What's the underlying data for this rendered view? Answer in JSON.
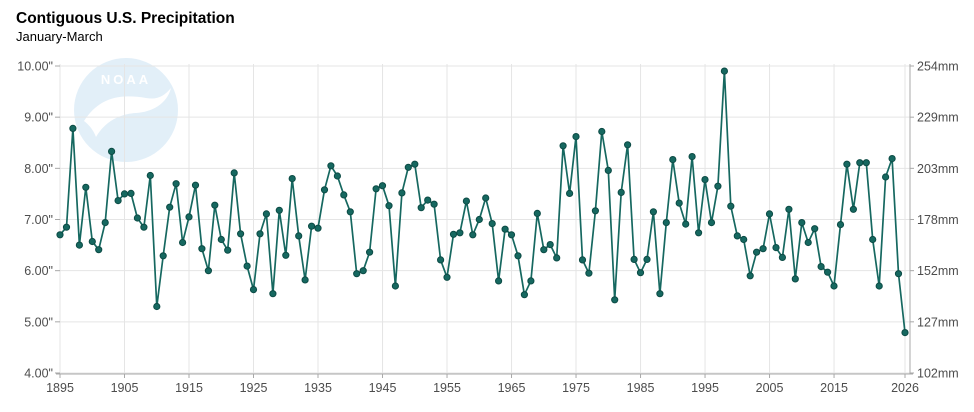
{
  "header": {
    "title": "Contiguous U.S. Precipitation",
    "subtitle": "January-March"
  },
  "watermark": {
    "label": "NOAA"
  },
  "chart_data": {
    "type": "line",
    "title": "Contiguous U.S. Precipitation",
    "subtitle": "January-March",
    "series_name": "January-March precipitation (inches)",
    "x_start": 1895,
    "x_end": 2026,
    "ylim": [
      4,
      10
    ],
    "grid": true,
    "values": [
      6.7,
      6.85,
      8.78,
      6.5,
      7.63,
      6.57,
      6.41,
      6.94,
      8.33,
      7.37,
      7.5,
      7.51,
      7.03,
      6.85,
      7.86,
      5.3,
      6.29,
      7.24,
      7.7,
      6.55,
      7.05,
      7.67,
      6.43,
      6.0,
      7.28,
      6.61,
      6.4,
      7.91,
      6.72,
      6.09,
      5.63,
      6.72,
      7.11,
      5.55,
      7.18,
      6.3,
      7.8,
      6.68,
      5.82,
      6.87,
      6.83,
      7.58,
      8.05,
      7.85,
      7.48,
      7.15,
      5.94,
      6.0,
      6.36,
      7.6,
      7.66,
      7.27,
      5.7,
      7.52,
      8.02,
      8.08,
      7.23,
      7.38,
      7.3,
      6.21,
      5.87,
      6.71,
      6.74,
      7.36,
      6.7,
      7.0,
      7.42,
      6.92,
      5.8,
      6.81,
      6.7,
      6.29,
      5.53,
      5.8,
      7.12,
      6.41,
      6.51,
      6.25,
      8.44,
      7.51,
      8.62,
      6.21,
      5.95,
      7.17,
      8.72,
      7.96,
      5.43,
      7.53,
      8.46,
      6.22,
      5.96,
      6.22,
      7.15,
      5.55,
      6.94,
      8.17,
      7.32,
      6.91,
      8.23,
      6.74,
      7.78,
      6.94,
      7.65,
      9.9,
      7.26,
      6.68,
      6.61,
      5.9,
      6.36,
      6.43,
      7.11,
      6.45,
      6.26,
      7.2,
      5.84,
      6.94,
      6.55,
      6.82,
      6.08,
      5.97,
      5.7,
      6.9,
      8.08,
      7.2,
      8.11,
      8.11,
      6.61,
      5.7,
      7.83,
      8.19,
      5.94,
      4.79
    ],
    "y_ticks": [
      {
        "value": 10,
        "label_in": "10.00\"",
        "label_mm": "254mm"
      },
      {
        "value": 9,
        "label_in": "9.00\"",
        "label_mm": "229mm"
      },
      {
        "value": 8,
        "label_in": "8.00\"",
        "label_mm": "203mm"
      },
      {
        "value": 7,
        "label_in": "7.00\"",
        "label_mm": "178mm"
      },
      {
        "value": 6,
        "label_in": "6.00\"",
        "label_mm": "152mm"
      },
      {
        "value": 5,
        "label_in": "5.00\"",
        "label_mm": "127mm"
      },
      {
        "value": 4,
        "label_in": "4.00\"",
        "label_mm": "102mm"
      }
    ],
    "x_ticks": [
      {
        "year": 1895,
        "label": "1895"
      },
      {
        "year": 1905,
        "label": "1905"
      },
      {
        "year": 1915,
        "label": "1915"
      },
      {
        "year": 1925,
        "label": "1925"
      },
      {
        "year": 1935,
        "label": "1935"
      },
      {
        "year": 1945,
        "label": "1945"
      },
      {
        "year": 1955,
        "label": "1955"
      },
      {
        "year": 1965,
        "label": "1965"
      },
      {
        "year": 1975,
        "label": "1975"
      },
      {
        "year": 1985,
        "label": "1985"
      },
      {
        "year": 1995,
        "label": "1995"
      },
      {
        "year": 2005,
        "label": "2005"
      },
      {
        "year": 2015,
        "label": "2015"
      },
      {
        "year": 2026,
        "label": "2026"
      }
    ],
    "colors": {
      "line": "#166860",
      "dot_fill": "#166860",
      "dot_stroke": "#0c4b45",
      "grid": "#e5e5e5",
      "axis": "#a8a8a8",
      "tick_text": "#4d4d4d",
      "title": "#191919",
      "subtitle": "#3d3d3d",
      "watermark_blue": "#cfe5f5"
    }
  }
}
